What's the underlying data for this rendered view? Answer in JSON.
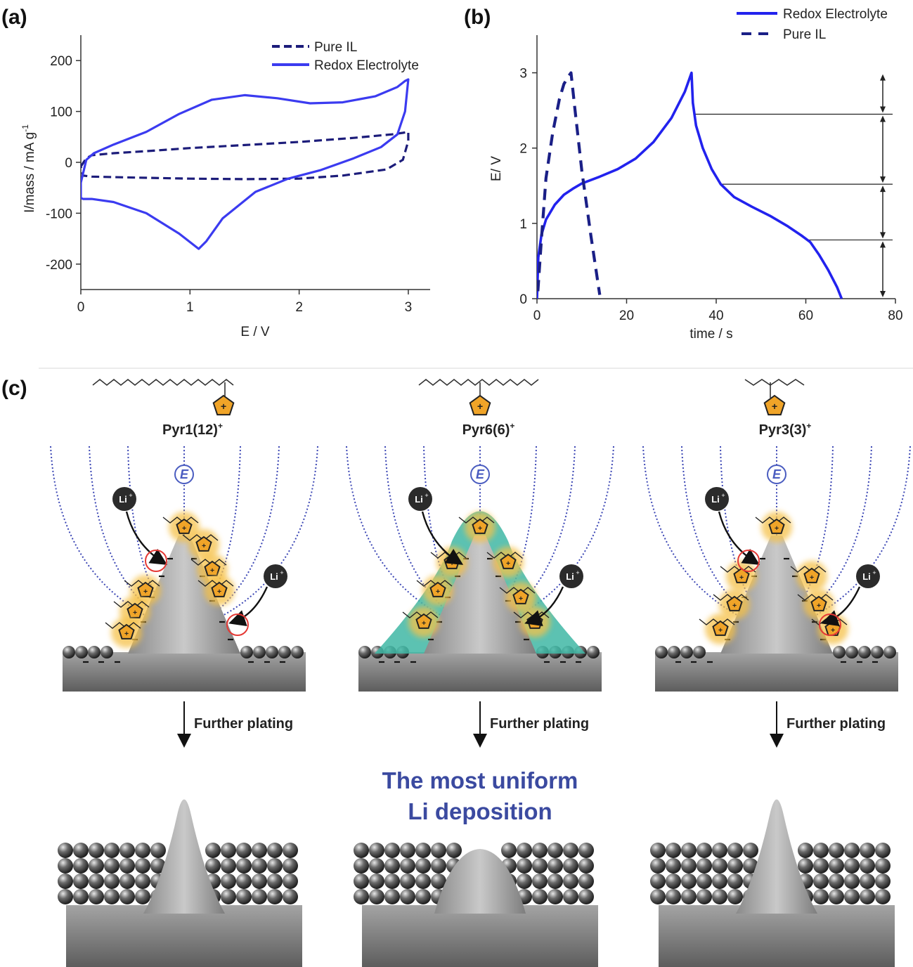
{
  "panels": {
    "a_label": "(a)",
    "b_label": "(b)",
    "c_label": "(c)"
  },
  "chart_data": [
    {
      "type": "line",
      "xlabel": "E / V",
      "ylabel": "I/mass / mA g",
      "ylabel_sup": "-1",
      "xlim": [
        0,
        3.2
      ],
      "ylim": [
        -250,
        250
      ],
      "xticks": [
        0,
        1,
        2,
        3
      ],
      "yticks": [
        -200,
        -100,
        0,
        100,
        200
      ],
      "legend_position": "top-right",
      "color": "#3b3bf0",
      "dark_color": "#1c1c7a",
      "series": [
        {
          "name": "Pure IL",
          "style": "dashed",
          "x": [
            0.0,
            0.05,
            0.1,
            0.3,
            0.6,
            1.0,
            1.5,
            2.0,
            2.5,
            2.85,
            2.95,
            3.0,
            3.0,
            2.95,
            2.8,
            2.4,
            2.0,
            1.5,
            1.0,
            0.5,
            0.1,
            0.02,
            0.0
          ],
          "y": [
            -8,
            8,
            14,
            18,
            22,
            28,
            34,
            40,
            48,
            55,
            58,
            60,
            42,
            5,
            -14,
            -26,
            -32,
            -33,
            -32,
            -30,
            -28,
            -26,
            -8
          ]
        },
        {
          "name": "Redox Electrolyte",
          "style": "solid",
          "x": [
            0.0,
            0.05,
            0.12,
            0.3,
            0.6,
            0.9,
            1.2,
            1.5,
            1.8,
            2.1,
            2.4,
            2.7,
            2.9,
            2.97,
            3.0,
            2.97,
            2.9,
            2.75,
            2.5,
            2.2,
            1.9,
            1.6,
            1.3,
            1.15,
            1.08,
            0.9,
            0.6,
            0.3,
            0.1,
            0.02,
            0.0
          ],
          "y": [
            -40,
            5,
            18,
            35,
            60,
            95,
            123,
            132,
            126,
            116,
            118,
            130,
            148,
            160,
            163,
            100,
            55,
            30,
            8,
            -15,
            -32,
            -58,
            -110,
            -155,
            -170,
            -140,
            -100,
            -78,
            -72,
            -72,
            -70
          ]
        }
      ]
    },
    {
      "type": "line",
      "xlabel": "time / s",
      "ylabel": "E/ V",
      "xlim": [
        0,
        80
      ],
      "ylim": [
        0,
        3.5
      ],
      "xticks": [
        0,
        20,
        40,
        60,
        80
      ],
      "yticks": [
        0,
        1,
        2,
        3
      ],
      "legend_position": "top-right",
      "color": "#2222ee",
      "dark_color": "#1a1f86",
      "series": [
        {
          "name": "Redox Electrolyte",
          "style": "solid",
          "x": [
            0,
            0.3,
            1,
            2,
            4,
            6,
            8,
            10,
            14,
            18,
            22,
            26,
            30,
            33,
            34.5,
            34.8,
            35.5,
            37,
            39,
            41,
            44,
            48,
            52,
            56,
            59,
            61,
            63,
            65,
            67,
            68
          ],
          "y": [
            0,
            0.55,
            0.85,
            1.05,
            1.25,
            1.38,
            1.46,
            1.53,
            1.62,
            1.72,
            1.86,
            2.08,
            2.4,
            2.75,
            3.0,
            2.6,
            2.3,
            2.0,
            1.72,
            1.52,
            1.35,
            1.22,
            1.1,
            0.96,
            0.84,
            0.75,
            0.58,
            0.38,
            0.15,
            0
          ]
        },
        {
          "name": "Pure IL",
          "style": "dashed",
          "x": [
            0.2,
            1,
            2,
            3.5,
            5,
            6,
            7,
            7.6,
            8.5,
            10,
            12,
            14
          ],
          "y": [
            0.1,
            0.8,
            1.6,
            2.2,
            2.65,
            2.85,
            2.95,
            3.0,
            2.5,
            1.7,
            0.85,
            0.05
          ]
        }
      ],
      "reference_levels": [
        2.45,
        1.52,
        0.78
      ]
    }
  ],
  "diagram": {
    "molecules": [
      "Pyr1(12)",
      "Pyr6(6)",
      "Pyr3(3)"
    ],
    "molecule_charge": "+",
    "field_label": "E",
    "ion_label": "Li",
    "ion_charge": "+",
    "arrow_label": "Further plating",
    "center_caption_line1": "The most uniform",
    "center_caption_line2": "Li deposition"
  }
}
